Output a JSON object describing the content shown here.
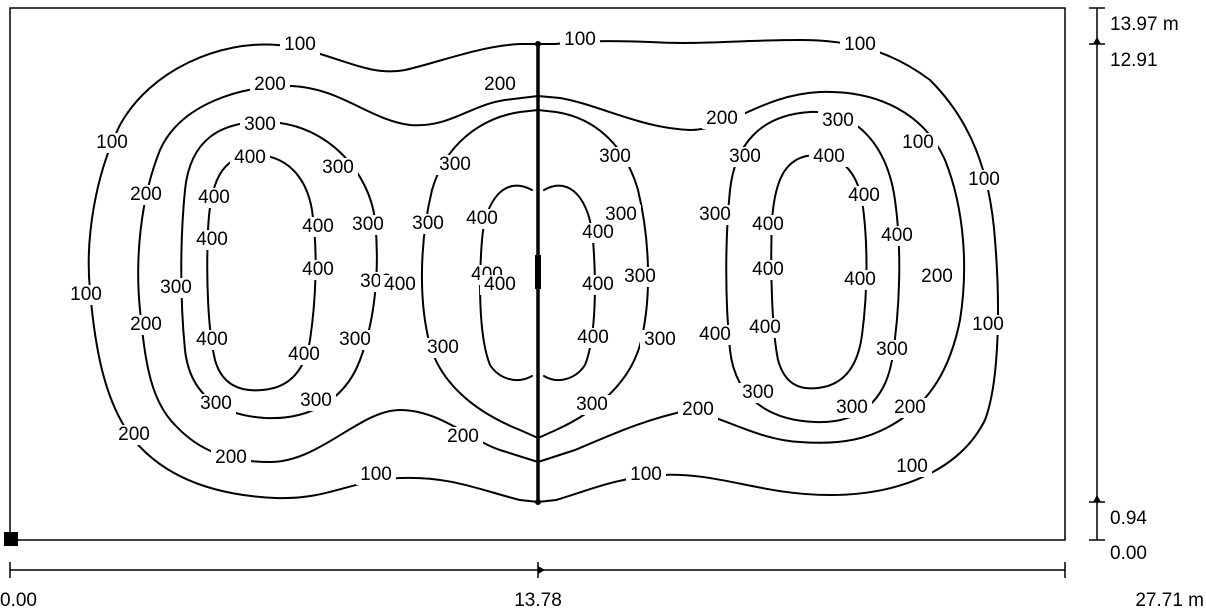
{
  "iso_values": [
    "100",
    "200",
    "300",
    "400"
  ],
  "contour_labels": [
    "100",
    "100",
    "100",
    "200",
    "200",
    "200",
    "300",
    "300",
    "300",
    "300",
    "400",
    "400",
    "400",
    "400",
    "400",
    "300",
    "300",
    "300",
    "100",
    "200",
    "300",
    "200",
    "300",
    "300",
    "200",
    "100",
    "300",
    "300",
    "300",
    "300",
    "400",
    "400",
    "400",
    "400",
    "400",
    "400",
    "400",
    "400",
    "400",
    "400",
    "200",
    "100",
    "100",
    "200",
    "300",
    "200",
    "300",
    "300",
    "300",
    "100",
    "200",
    "300",
    "300",
    "400",
    "400",
    "400",
    "300",
    "300",
    "400",
    "300",
    "400",
    "400",
    "400",
    "200",
    "100",
    "300",
    "200",
    "100",
    "100",
    "100"
  ],
  "x_axis": {
    "left": "0.00",
    "center": "13.78",
    "right": "27.71 m"
  },
  "y_axis": {
    "top": "13.97 m",
    "upper": "12.91",
    "lower": "0.94",
    "bottom": "0.00"
  }
}
